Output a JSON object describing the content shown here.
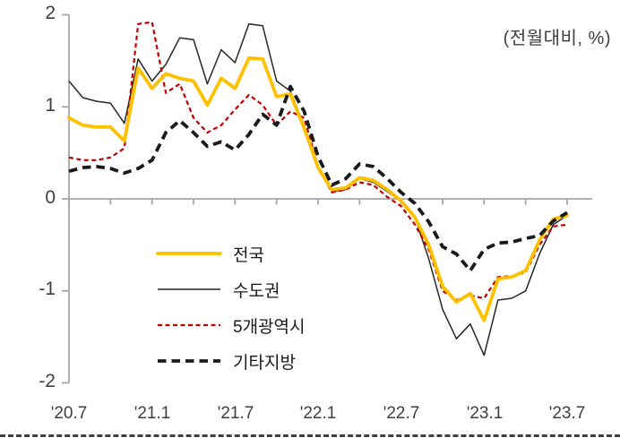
{
  "chart_data": {
    "type": "line",
    "unit_label": "(전월대비, %)",
    "x_tick_labels": [
      "'20.7",
      "'21.1",
      "'21.7",
      "'22.1",
      "'22.7",
      "'23.1",
      "'23.7"
    ],
    "months": [
      "'20.7",
      "'20.8",
      "'20.9",
      "'20.10",
      "'20.11",
      "'20.12",
      "'21.1",
      "'21.2",
      "'21.3",
      "'21.4",
      "'21.5",
      "'21.6",
      "'21.7",
      "'21.8",
      "'21.9",
      "'21.10",
      "'21.11",
      "'21.12",
      "'22.1",
      "'22.2",
      "'22.3",
      "'22.4",
      "'22.5",
      "'22.6",
      "'22.7",
      "'22.8",
      "'22.9",
      "'22.10",
      "'22.11",
      "'22.12",
      "'23.1",
      "'23.2",
      "'23.3",
      "'23.4",
      "'23.5",
      "'23.6",
      "'23.7"
    ],
    "y_axis": {
      "min": -2,
      "max": 2,
      "step": 1,
      "ticks": [
        2,
        1,
        0,
        -1,
        -2
      ],
      "labels": [
        "2",
        "1",
        "0",
        "-1",
        "-2"
      ]
    },
    "grid": "off",
    "legend_position": "inside-lower-left",
    "axis_color": "#a6a6a6",
    "series": [
      {
        "id": "nationwide",
        "name": "전국",
        "color": "#ffc000",
        "line_style": "solid-thick",
        "values": [
          0.88,
          0.8,
          0.78,
          0.78,
          0.63,
          1.42,
          1.2,
          1.36,
          1.31,
          1.28,
          1.02,
          1.31,
          1.2,
          1.53,
          1.52,
          1.11,
          1.14,
          0.77,
          0.34,
          0.1,
          0.12,
          0.23,
          0.2,
          0.1,
          -0.02,
          -0.2,
          -0.5,
          -0.95,
          -1.12,
          -1.03,
          -1.32,
          -0.87,
          -0.85,
          -0.78,
          -0.45,
          -0.22,
          -0.18
        ]
      },
      {
        "id": "capital-region",
        "name": "수도권",
        "color": "#262626",
        "line_style": "solid-thin",
        "values": [
          1.28,
          1.1,
          1.06,
          1.04,
          0.82,
          1.52,
          1.28,
          1.46,
          1.75,
          1.73,
          1.25,
          1.62,
          1.48,
          1.9,
          1.88,
          1.28,
          1.17,
          0.8,
          0.32,
          0.08,
          0.1,
          0.22,
          0.18,
          0.08,
          -0.03,
          -0.2,
          -0.65,
          -1.2,
          -1.52,
          -1.36,
          -1.7,
          -1.1,
          -1.08,
          -1.0,
          -0.6,
          -0.28,
          -0.18
        ]
      },
      {
        "id": "five-metro-cities",
        "name": "5개광역시",
        "color": "#c00000",
        "line_style": "dashed-fine",
        "values": [
          0.45,
          0.42,
          0.42,
          0.45,
          0.55,
          1.9,
          1.92,
          1.15,
          1.25,
          0.88,
          0.72,
          0.8,
          0.97,
          1.13,
          1.02,
          0.8,
          0.95,
          0.88,
          0.35,
          0.07,
          0.1,
          0.18,
          0.15,
          0.02,
          -0.08,
          -0.28,
          -0.55,
          -1.0,
          -1.1,
          -1.05,
          -1.08,
          -0.85,
          -0.84,
          -0.8,
          -0.5,
          -0.3,
          -0.28
        ]
      },
      {
        "id": "other-regions",
        "name": "기타지방",
        "color": "#1a1a1a",
        "line_style": "dashed-thick",
        "values": [
          0.3,
          0.34,
          0.35,
          0.33,
          0.28,
          0.33,
          0.42,
          0.72,
          0.85,
          0.72,
          0.57,
          0.62,
          0.53,
          0.7,
          0.92,
          0.8,
          1.22,
          0.95,
          0.46,
          0.15,
          0.22,
          0.38,
          0.35,
          0.22,
          0.07,
          -0.05,
          -0.25,
          -0.52,
          -0.6,
          -0.78,
          -0.55,
          -0.48,
          -0.47,
          -0.43,
          -0.4,
          -0.24,
          -0.15
        ]
      }
    ]
  }
}
